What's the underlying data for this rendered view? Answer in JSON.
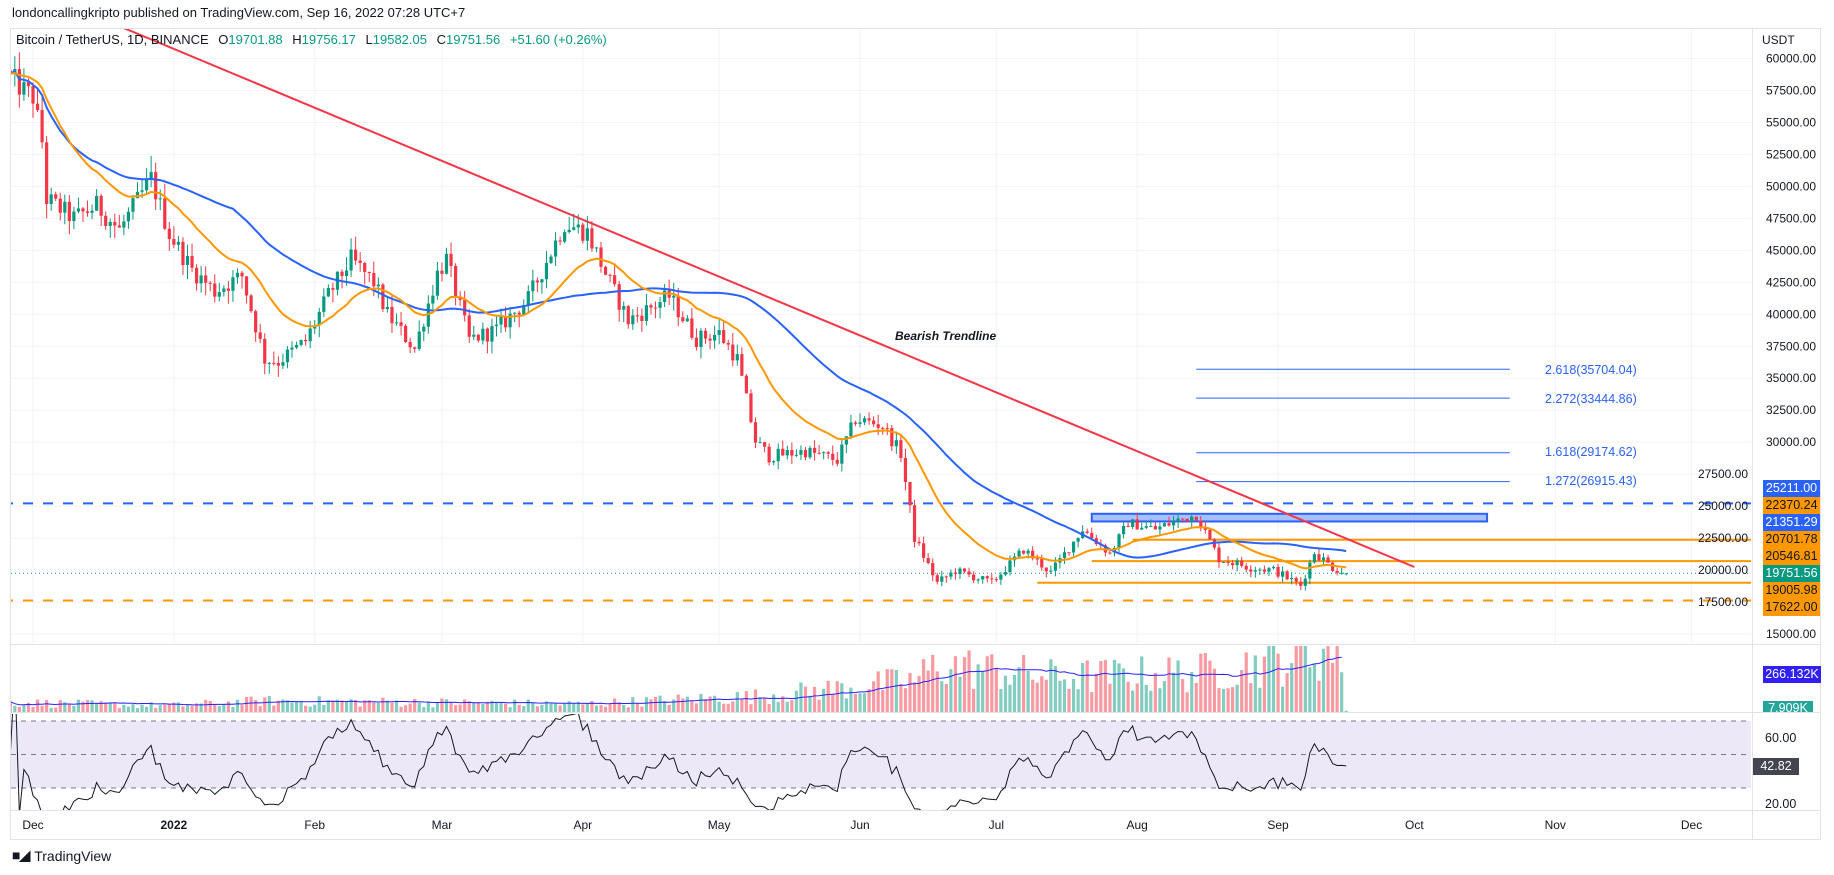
{
  "header": {
    "published": "londoncallingkripto published on TradingView.com, Sep 16, 2022 07:28 UTC+7"
  },
  "legend": {
    "symbol": "Bitcoin / TetherUS, 1D, BINANCE",
    "open_label": "O",
    "open": "19701.88",
    "high_label": "H",
    "high": "19756.17",
    "low_label": "L",
    "low": "19582.05",
    "close_label": "C",
    "close": "19751.56",
    "change": "+51.60 (+0.26%)"
  },
  "price_axis": {
    "currency": "USDT"
  },
  "price_tags": [
    {
      "text": "25211.00",
      "style": "blue"
    },
    {
      "text": "22370.24",
      "style": "orange"
    },
    {
      "text": "21351.29",
      "style": "blue"
    },
    {
      "text": "20701.78",
      "style": "orange"
    },
    {
      "text": "20546.81",
      "style": "orange"
    },
    {
      "text": "19751.56",
      "style": "green"
    },
    {
      "text": "19005.98",
      "style": "orange"
    },
    {
      "text": "17622.00",
      "style": "orange"
    }
  ],
  "volume_tags": {
    "ma": "266.132K",
    "last": "7.909K"
  },
  "rsi_tags": {
    "upper": "60.00",
    "current": "42.82",
    "lower": "20.00"
  },
  "annotations": {
    "trendline_label": "Bearish Trendline"
  },
  "fib_levels": [
    {
      "label": "2.618(35704.04)",
      "price": 35704.04
    },
    {
      "label": "2.272(33444.86)",
      "price": 33444.86
    },
    {
      "label": "1.618(29174.62)",
      "price": 29174.62
    },
    {
      "label": "1.272(26915.43)",
      "price": 26915.43
    }
  ],
  "footer": {
    "brand": "TradingView"
  },
  "colors": {
    "up": "#089981",
    "down": "#f23645",
    "ema_fast": "#ff9800",
    "ma_slow": "#2962ff",
    "trendline": "#f23645",
    "level_blue": "#2962ff",
    "level_orange": "#ff9800",
    "rsi": "#131722",
    "rsi_band": "#ede8f8"
  },
  "chart_data": {
    "type": "candlestick",
    "title": "Bitcoin / TetherUS, 1D, BINANCE",
    "ylabel": "USDT",
    "ylim": [
      15000,
      60000
    ],
    "y_ticks": [
      15000,
      17500,
      20000,
      22500,
      25000,
      27500,
      30000,
      32500,
      35000,
      37500,
      40000,
      42500,
      45000,
      47500,
      50000,
      52500,
      55000,
      57500,
      60000
    ],
    "x_ticks": [
      {
        "date": "2021-12-01",
        "label": "Dec"
      },
      {
        "date": "2022-01-01",
        "label": "2022",
        "bold": true
      },
      {
        "date": "2022-02-01",
        "label": "Feb"
      },
      {
        "date": "2022-03-01",
        "label": "Mar"
      },
      {
        "date": "2022-04-01",
        "label": "Apr"
      },
      {
        "date": "2022-05-01",
        "label": "May"
      },
      {
        "date": "2022-06-01",
        "label": "Jun"
      },
      {
        "date": "2022-07-01",
        "label": "Jul"
      },
      {
        "date": "2022-08-01",
        "label": "Aug"
      },
      {
        "date": "2022-09-01",
        "label": "Sep"
      },
      {
        "date": "2022-10-01",
        "label": "Oct"
      },
      {
        "date": "2022-11-01",
        "label": "Nov"
      },
      {
        "date": "2022-12-01",
        "label": "Dec"
      }
    ],
    "close_keypoints": [
      [
        "2021-11-26",
        58500
      ],
      [
        "2021-11-29",
        57500
      ],
      [
        "2021-12-01",
        57000
      ],
      [
        "2021-12-03",
        53500
      ],
      [
        "2021-12-04",
        49000
      ],
      [
        "2021-12-10",
        47500
      ],
      [
        "2021-12-15",
        48500
      ],
      [
        "2021-12-20",
        46600
      ],
      [
        "2021-12-27",
        50600
      ],
      [
        "2021-12-31",
        46300
      ],
      [
        "2022-01-05",
        43500
      ],
      [
        "2022-01-10",
        41800
      ],
      [
        "2022-01-16",
        43000
      ],
      [
        "2022-01-21",
        36500
      ],
      [
        "2022-01-24",
        36300
      ],
      [
        "2022-01-30",
        37900
      ],
      [
        "2022-02-04",
        41500
      ],
      [
        "2022-02-09",
        44300
      ],
      [
        "2022-02-14",
        42500
      ],
      [
        "2022-02-17",
        40000
      ],
      [
        "2022-02-23",
        37300
      ],
      [
        "2022-02-28",
        43200
      ],
      [
        "2022-03-02",
        44300
      ],
      [
        "2022-03-07",
        38000
      ],
      [
        "2022-03-13",
        38800
      ],
      [
        "2022-03-20",
        41200
      ],
      [
        "2022-03-28",
        47100
      ],
      [
        "2022-04-02",
        46400
      ],
      [
        "2022-04-06",
        43200
      ],
      [
        "2022-04-11",
        39500
      ],
      [
        "2022-04-20",
        41400
      ],
      [
        "2022-04-26",
        38100
      ],
      [
        "2022-05-01",
        38500
      ],
      [
        "2022-05-05",
        36500
      ],
      [
        "2022-05-09",
        30100
      ],
      [
        "2022-05-12",
        28900
      ],
      [
        "2022-05-20",
        29300
      ],
      [
        "2022-05-27",
        28600
      ],
      [
        "2022-05-31",
        31800
      ],
      [
        "2022-06-06",
        31300
      ],
      [
        "2022-06-10",
        29100
      ],
      [
        "2022-06-13",
        22500
      ],
      [
        "2022-06-18",
        19000
      ],
      [
        "2022-06-22",
        19950
      ],
      [
        "2022-06-30",
        19000
      ],
      [
        "2022-07-07",
        21600
      ],
      [
        "2022-07-13",
        19800
      ],
      [
        "2022-07-20",
        23200
      ],
      [
        "2022-07-26",
        21300
      ],
      [
        "2022-07-30",
        23700
      ],
      [
        "2022-08-05",
        23200
      ],
      [
        "2022-08-10",
        23900
      ],
      [
        "2022-08-14",
        24300
      ],
      [
        "2022-08-19",
        20900
      ],
      [
        "2022-08-26",
        20200
      ],
      [
        "2022-08-31",
        20000
      ],
      [
        "2022-09-06",
        18800
      ],
      [
        "2022-09-09",
        21400
      ],
      [
        "2022-09-13",
        20200
      ],
      [
        "2022-09-16",
        19751.56
      ]
    ],
    "last_candle": {
      "date": "2022-09-16",
      "open": 19701.88,
      "high": 19756.17,
      "low": 19582.05,
      "close": 19751.56
    },
    "volume_keypoints_k": [
      [
        "2021-11-26",
        60
      ],
      [
        "2021-12-31",
        40
      ],
      [
        "2022-01-21",
        70
      ],
      [
        "2022-02-28",
        60
      ],
      [
        "2022-03-31",
        50
      ],
      [
        "2022-05-10",
        100
      ],
      [
        "2022-06-13",
        200
      ],
      [
        "2022-06-18",
        300
      ],
      [
        "2022-07-15",
        220
      ],
      [
        "2022-08-15",
        250
      ],
      [
        "2022-09-06",
        350
      ],
      [
        "2022-09-13",
        400
      ],
      [
        "2022-09-15",
        380
      ],
      [
        "2022-09-16",
        7.909
      ]
    ],
    "volume_ylim_k": [
      0,
      440
    ],
    "indicators": {
      "ema_fast_period": 20,
      "ma_slow_period": 50,
      "rsi_period": 14,
      "rsi_ylim": [
        10,
        75
      ],
      "rsi_bands": [
        30,
        50,
        70
      ]
    },
    "horizontal_levels": [
      {
        "price": 25211.0,
        "style": "dashed",
        "color": "blue",
        "from": "2021-11-20"
      },
      {
        "price": 22370.24,
        "style": "solid",
        "color": "orange",
        "from": "2022-07-31"
      },
      {
        "price": 20701.78,
        "style": "solid",
        "color": "orange",
        "from": "2022-07-22"
      },
      {
        "price": 19005.98,
        "style": "solid",
        "color": "orange",
        "from": "2022-07-10"
      },
      {
        "price": 17622.0,
        "style": "dashed",
        "color": "orange",
        "from": "2021-11-20"
      }
    ],
    "resistance_box": {
      "from": "2022-07-22",
      "to": "2022-10-17",
      "top": 24400,
      "bottom": 23800
    },
    "trendline": {
      "p1": [
        "2022-03-29",
        47840
      ],
      "p2": [
        "2022-10-01",
        20240
      ]
    },
    "fib_range": {
      "from": "2022-08-14",
      "to": "2022-10-22"
    }
  }
}
